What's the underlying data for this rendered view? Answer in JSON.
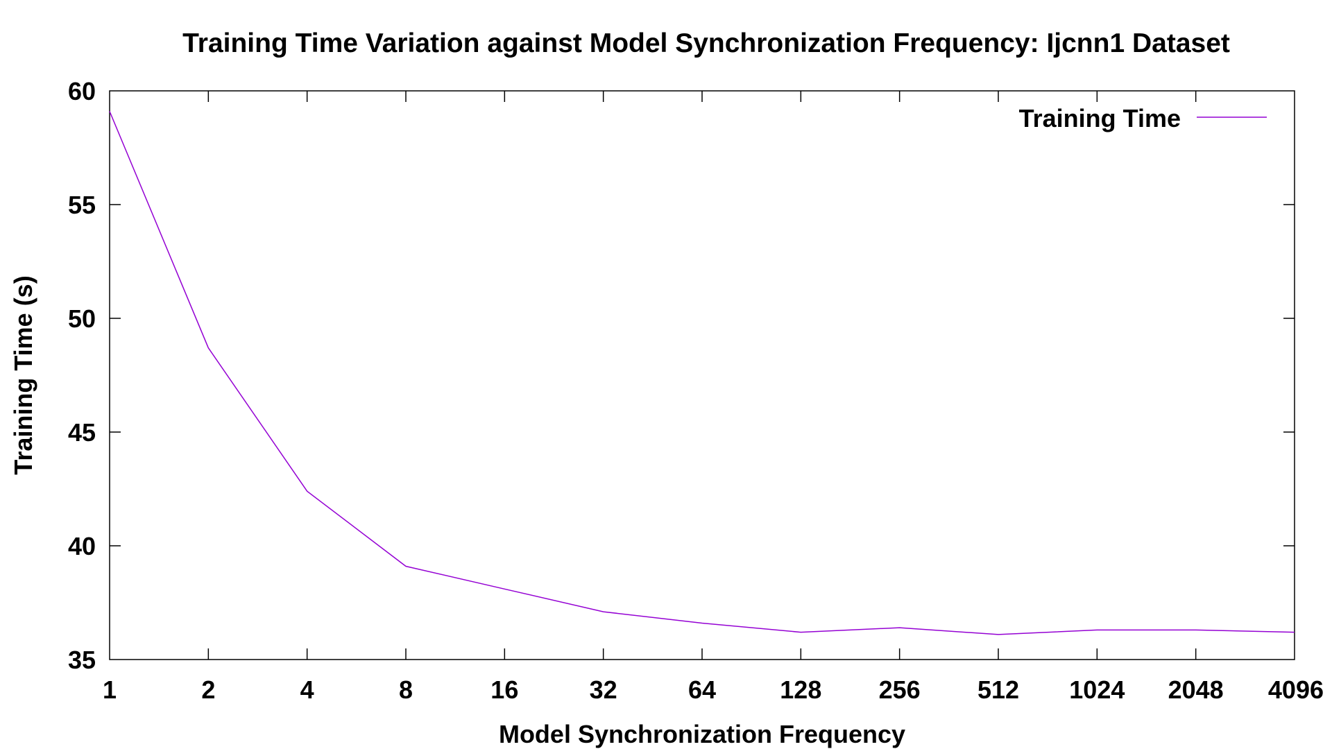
{
  "chart_data": {
    "type": "line",
    "title": "Training Time Variation against Model Synchronization Frequency: Ijcnn1 Dataset",
    "xlabel": "Model Synchronization Frequency",
    "ylabel": "Training Time (s)",
    "x_scale": "log2",
    "categories": [
      "1",
      "2",
      "4",
      "8",
      "16",
      "32",
      "64",
      "128",
      "256",
      "512",
      "1024",
      "2048",
      "4096"
    ],
    "x": [
      1,
      2,
      4,
      8,
      16,
      32,
      64,
      128,
      256,
      512,
      1024,
      2048,
      4096
    ],
    "ylim": [
      35,
      60
    ],
    "yticks": [
      35,
      40,
      45,
      50,
      55,
      60
    ],
    "grid": false,
    "legend_position": "top-right",
    "series": [
      {
        "name": "Training Time",
        "color": "#9400D3",
        "values": [
          59.1,
          48.7,
          42.4,
          39.1,
          38.1,
          37.1,
          36.6,
          36.2,
          36.4,
          36.1,
          36.3,
          36.3,
          36.2
        ]
      }
    ]
  }
}
